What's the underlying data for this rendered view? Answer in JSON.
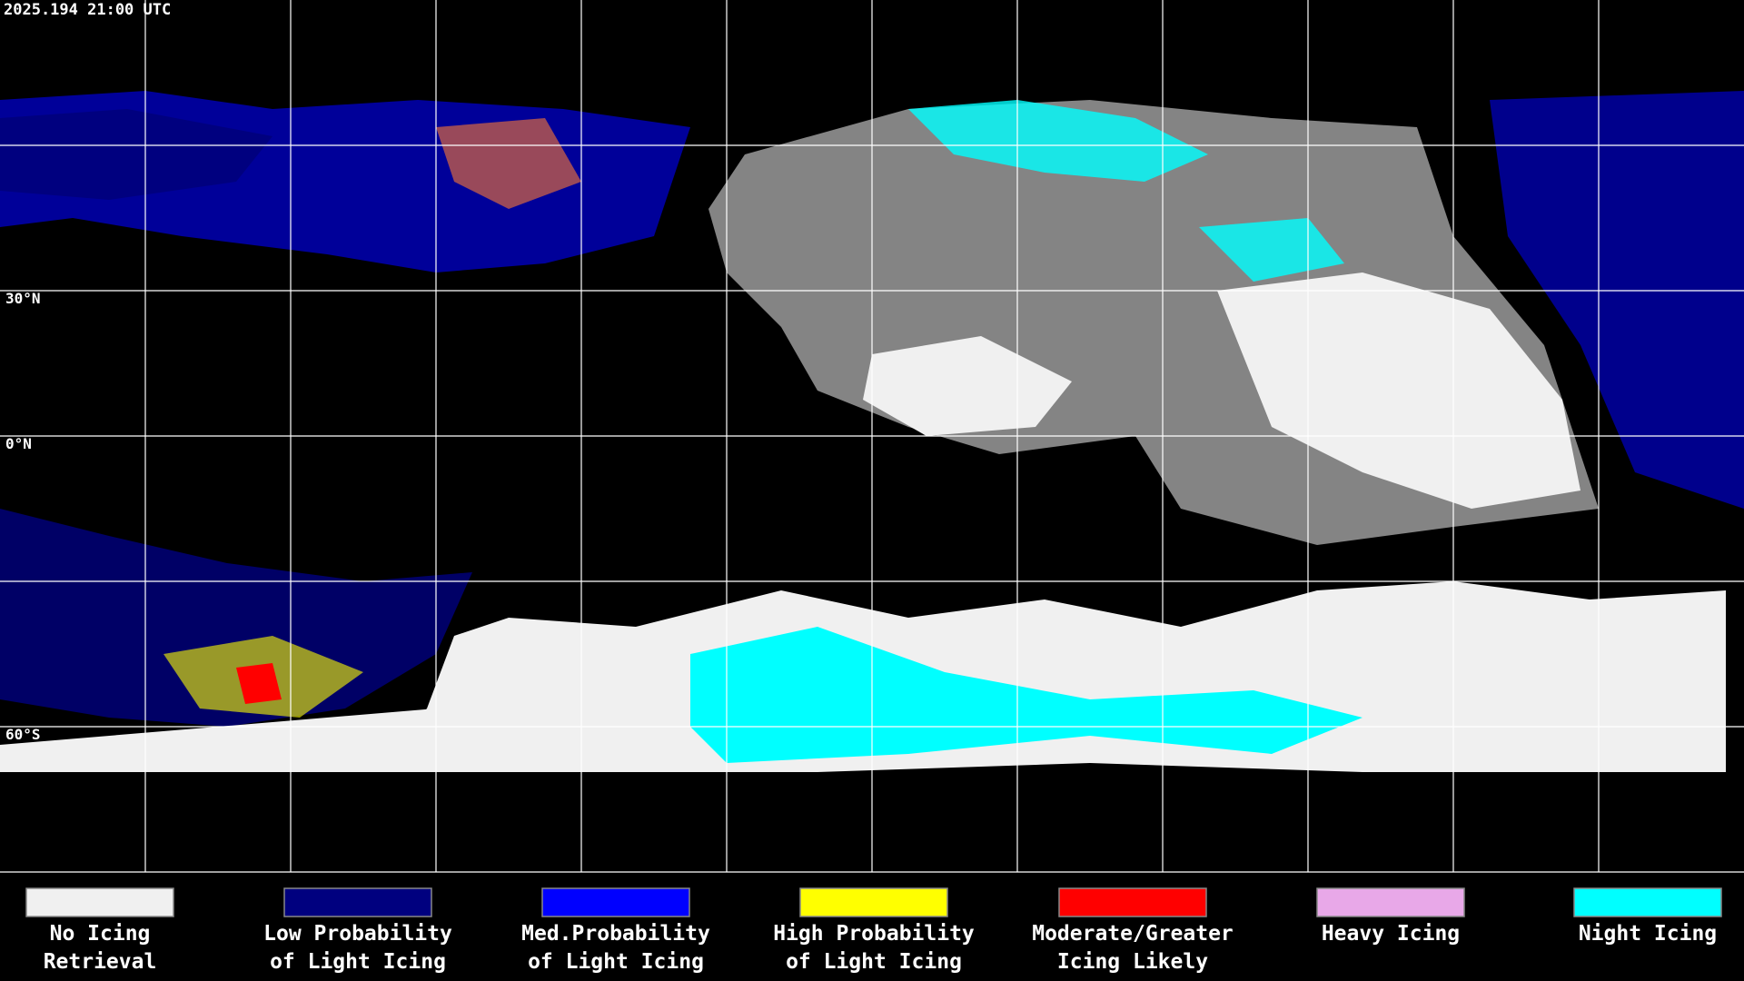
{
  "timestamp": "2025.194 21:00 UTC",
  "lat_labels": [
    "30°N",
    "0°N",
    "60°S"
  ],
  "legend": [
    {
      "lines": [
        "No Icing",
        "Retrieval"
      ],
      "color": "#f0f0f0"
    },
    {
      "lines": [
        "Low Probability",
        "of Light Icing"
      ],
      "color": "#00007f"
    },
    {
      "lines": [
        "Med.Probability",
        "of Light Icing"
      ],
      "color": "#0000ff"
    },
    {
      "lines": [
        "High Probability",
        "of Light Icing"
      ],
      "color": "#ffff00"
    },
    {
      "lines": [
        "Moderate/Greater",
        "Icing Likely"
      ],
      "color": "#ff0000"
    },
    {
      "lines": [
        "Heavy Icing"
      ],
      "color": "#e8a8e8"
    },
    {
      "lines": [
        "Night Icing"
      ],
      "color": "#00ffff"
    }
  ]
}
